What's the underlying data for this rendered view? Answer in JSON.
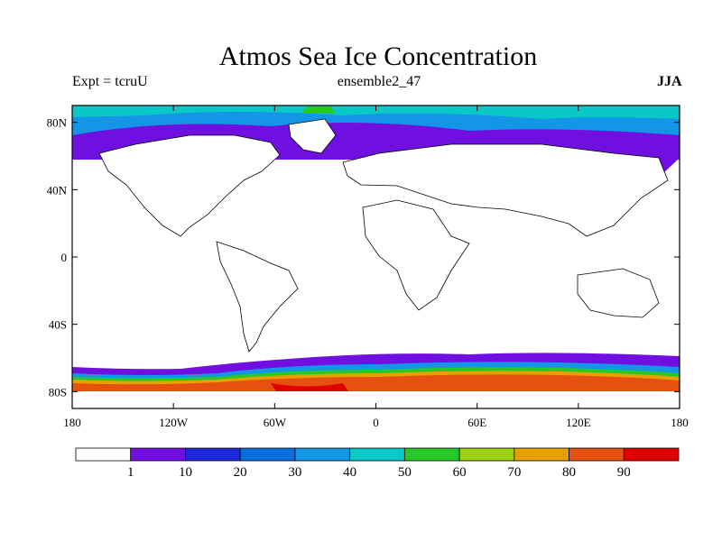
{
  "title": "Atmos Sea Ice Concentration",
  "subtitle_left": "Expt = tcruU",
  "subtitle_center": "ensemble2_47",
  "subtitle_right": "JJA",
  "map": {
    "lon_range": [
      -180,
      180
    ],
    "lat_range": [
      -90,
      90
    ],
    "x_ticks": [
      {
        "value": -180,
        "label": "180"
      },
      {
        "value": -120,
        "label": "120W"
      },
      {
        "value": -60,
        "label": "60W"
      },
      {
        "value": 0,
        "label": "0"
      },
      {
        "value": 60,
        "label": "60E"
      },
      {
        "value": 120,
        "label": "120E"
      },
      {
        "value": 180,
        "label": "180"
      }
    ],
    "y_ticks": [
      {
        "value": 80,
        "label": "80N"
      },
      {
        "value": 40,
        "label": "40N"
      },
      {
        "value": 0,
        "label": "0"
      },
      {
        "value": -40,
        "label": "40S"
      },
      {
        "value": -80,
        "label": "80S"
      }
    ]
  },
  "colorbar": {
    "colors": [
      "#ffffff",
      "#7010e0",
      "#1c28d8",
      "#0a6ee0",
      "#1496e6",
      "#0ac8c8",
      "#28c828",
      "#a0d214",
      "#e6a000",
      "#e65010",
      "#e00000"
    ],
    "labels": [
      "1",
      "10",
      "20",
      "30",
      "40",
      "50",
      "60",
      "70",
      "80",
      "90"
    ]
  },
  "chart_data": {
    "type": "heatmap",
    "title": "Atmos Sea Ice Concentration",
    "variable": "sea ice concentration",
    "levels": [
      1,
      10,
      20,
      30,
      40,
      50,
      60,
      70,
      80,
      90
    ],
    "season": "JJA",
    "xlim": [
      -180,
      180
    ],
    "ylim": [
      -90,
      90
    ]
  }
}
